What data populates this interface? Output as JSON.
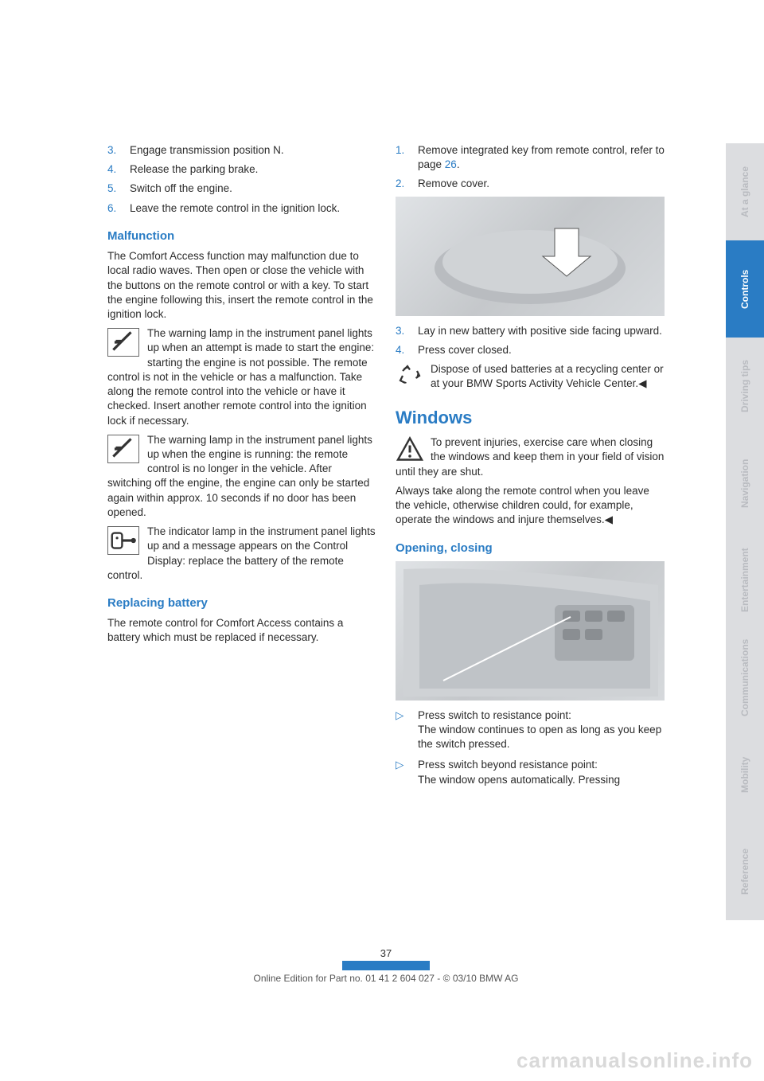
{
  "left": {
    "steps": [
      {
        "n": "3.",
        "t": "Engage transmission position N."
      },
      {
        "n": "4.",
        "t": "Release the parking brake."
      },
      {
        "n": "5.",
        "t": "Switch off the engine."
      },
      {
        "n": "6.",
        "t": "Leave the remote control in the ignition lock."
      }
    ],
    "malfunction_h": "Malfunction",
    "malfunction_p": "The Comfort Access function may malfunction due to local radio waves. Then open or close the vehicle with the buttons on the remote control or with a key. To start the engine following this, insert the remote control in the ignition lock.",
    "warn1": "The warning lamp in the instrument panel lights up when an attempt is made to start the engine: starting the engine is not possible. The remote control is not in the vehicle or has a malfunction. Take along the remote control into the vehicle or have it checked. Insert another remote control into the ignition lock if necessary.",
    "warn2": "The warning lamp in the instrument panel lights up when the engine is running: the remote control is no longer in the vehicle. After switching off the engine, the engine can only be started again within approx. 10 seconds if no door has been opened.",
    "warn3": "The indicator lamp in the instrument panel lights up and a message appears on the Control Display: replace the battery of the remote control.",
    "replace_h": "Replacing battery",
    "replace_p": "The remote control for Comfort Access contains a battery which must be replaced if necessary."
  },
  "right": {
    "steps1": [
      {
        "n": "1.",
        "t_a": "Remove integrated key from remote control, refer to page ",
        "link": "26",
        "t_b": "."
      },
      {
        "n": "2.",
        "t_a": "Remove cover.",
        "link": "",
        "t_b": ""
      }
    ],
    "steps2": [
      {
        "n": "3.",
        "t": "Lay in new battery with positive side facing upward."
      },
      {
        "n": "4.",
        "t": "Press cover closed."
      }
    ],
    "recycle": "Dispose of used batteries at a recycling center or at your BMW Sports Activity Vehicle Center.",
    "windows_h": "Windows",
    "windows_warn": "To prevent injuries, exercise care when closing the windows and keep them in your field of vision until they are shut.",
    "windows_p": "Always take along the remote control when you leave the vehicle, otherwise children could, for example, operate the windows and injure themselves.",
    "open_h": "Opening, closing",
    "bullets": [
      {
        "a": "Press switch to resistance point:",
        "b": "The window continues to open as long as you keep the switch pressed."
      },
      {
        "a": "Press switch beyond resistance point:",
        "b": "The window opens automatically. Pressing"
      }
    ]
  },
  "footer": {
    "page": "37",
    "copyright": "Online Edition for Part no. 01 41 2 604 027 - © 03/10 BMW AG"
  },
  "watermark": "carmanualsonline.info",
  "tabs": [
    {
      "label": "At a glance",
      "active": false
    },
    {
      "label": "Controls",
      "active": true
    },
    {
      "label": "Driving tips",
      "active": false
    },
    {
      "label": "Navigation",
      "active": false
    },
    {
      "label": "Entertainment",
      "active": false
    },
    {
      "label": "Communications",
      "active": false
    },
    {
      "label": "Mobility",
      "active": false
    },
    {
      "label": "Reference",
      "active": false
    }
  ]
}
